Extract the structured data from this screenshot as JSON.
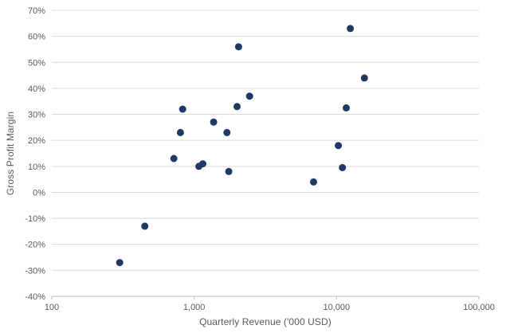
{
  "chart_data": {
    "type": "scatter",
    "title": "",
    "xlabel": "Quarterly Revenue ('000 USD)",
    "ylabel": "Gross Profit Margin",
    "x_scale": "log",
    "y_scale": "linear",
    "xlim": [
      100,
      100000
    ],
    "ylim": [
      -40,
      70
    ],
    "grid": "horizontal",
    "legend": "none",
    "marker_color": "#1F3864",
    "marker_radius": 4.5,
    "gridline_color": "#D9D9D9",
    "axis_line_color": "#BFBFBF",
    "text_color": "#595959",
    "x_ticks": [
      {
        "value": 100,
        "label": "100"
      },
      {
        "value": 1000,
        "label": "1,000"
      },
      {
        "value": 10000,
        "label": "10,000"
      },
      {
        "value": 100000,
        "label": "100,000"
      }
    ],
    "y_ticks": [
      {
        "value": -40,
        "label": "-40%"
      },
      {
        "value": -30,
        "label": "-30%"
      },
      {
        "value": -20,
        "label": "-20%"
      },
      {
        "value": -10,
        "label": "-10%"
      },
      {
        "value": 0,
        "label": "0%"
      },
      {
        "value": 10,
        "label": "10%"
      },
      {
        "value": 20,
        "label": "20%"
      },
      {
        "value": 30,
        "label": "30%"
      },
      {
        "value": 40,
        "label": "40%"
      },
      {
        "value": 50,
        "label": "50%"
      },
      {
        "value": 60,
        "label": "60%"
      },
      {
        "value": 70,
        "label": "70%"
      }
    ],
    "points": [
      [
        300,
        -27
      ],
      [
        450,
        -13
      ],
      [
        720,
        13
      ],
      [
        800,
        23
      ],
      [
        830,
        32
      ],
      [
        1080,
        10
      ],
      [
        1150,
        11
      ],
      [
        1370,
        27
      ],
      [
        1700,
        23
      ],
      [
        1750,
        8
      ],
      [
        2000,
        33
      ],
      [
        2050,
        56
      ],
      [
        2450,
        37
      ],
      [
        6900,
        4
      ],
      [
        10300,
        18
      ],
      [
        11000,
        9.5
      ],
      [
        11700,
        32.5
      ],
      [
        12500,
        63
      ],
      [
        15700,
        44
      ]
    ]
  }
}
